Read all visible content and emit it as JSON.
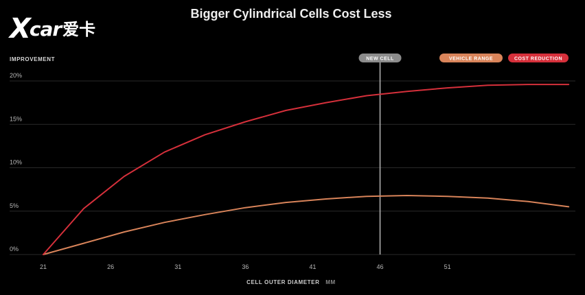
{
  "watermark": {
    "brand_x": "X",
    "brand_car": "car",
    "brand_cn": "爱卡"
  },
  "colors": {
    "background": "#000000",
    "gridline": "#2a2a2a",
    "vehicle_range": "#d9845a",
    "cost_reduction": "#d6303b",
    "new_cell_marker": "#8c8c8c",
    "new_cell_line": "#b0b0b0"
  },
  "chart_data": {
    "type": "line",
    "title": "Bigger Cylindrical Cells Cost Less",
    "ylabel": "IMPROVEMENT",
    "xlabel": "CELL OUTER DIAMETER",
    "xunit": "MM",
    "xlim": [
      18.5,
      60.5
    ],
    "ylim": [
      0,
      20
    ],
    "grid": true,
    "legend_position": "top-right",
    "x_ticks": [
      21,
      26,
      31,
      36,
      41,
      46,
      51
    ],
    "x_tick_labels": [
      "21",
      "26",
      "31",
      "36",
      "41",
      "46",
      "51"
    ],
    "y_ticks": [
      0,
      5,
      10,
      15,
      20
    ],
    "y_tick_labels": [
      "0%",
      "5%",
      "10%",
      "15%",
      "20%"
    ],
    "annotation": {
      "label": "NEW CELL",
      "x": 46
    },
    "series": [
      {
        "name": "VEHICLE RANGE",
        "color": "#d9845a",
        "x": [
          21,
          24,
          27,
          30,
          33,
          36,
          39,
          42,
          45,
          48,
          51,
          54,
          57,
          60
        ],
        "values": [
          0,
          1.3,
          2.6,
          3.7,
          4.6,
          5.4,
          6.0,
          6.4,
          6.7,
          6.8,
          6.7,
          6.5,
          6.1,
          5.5
        ]
      },
      {
        "name": "COST REDUCTION",
        "color": "#d6303b",
        "x": [
          21,
          24,
          27,
          30,
          33,
          36,
          39,
          42,
          45,
          48,
          51,
          54,
          57,
          60
        ],
        "values": [
          0,
          5.3,
          9.0,
          11.8,
          13.8,
          15.3,
          16.6,
          17.5,
          18.3,
          18.8,
          19.2,
          19.5,
          19.6,
          19.6
        ]
      }
    ]
  }
}
